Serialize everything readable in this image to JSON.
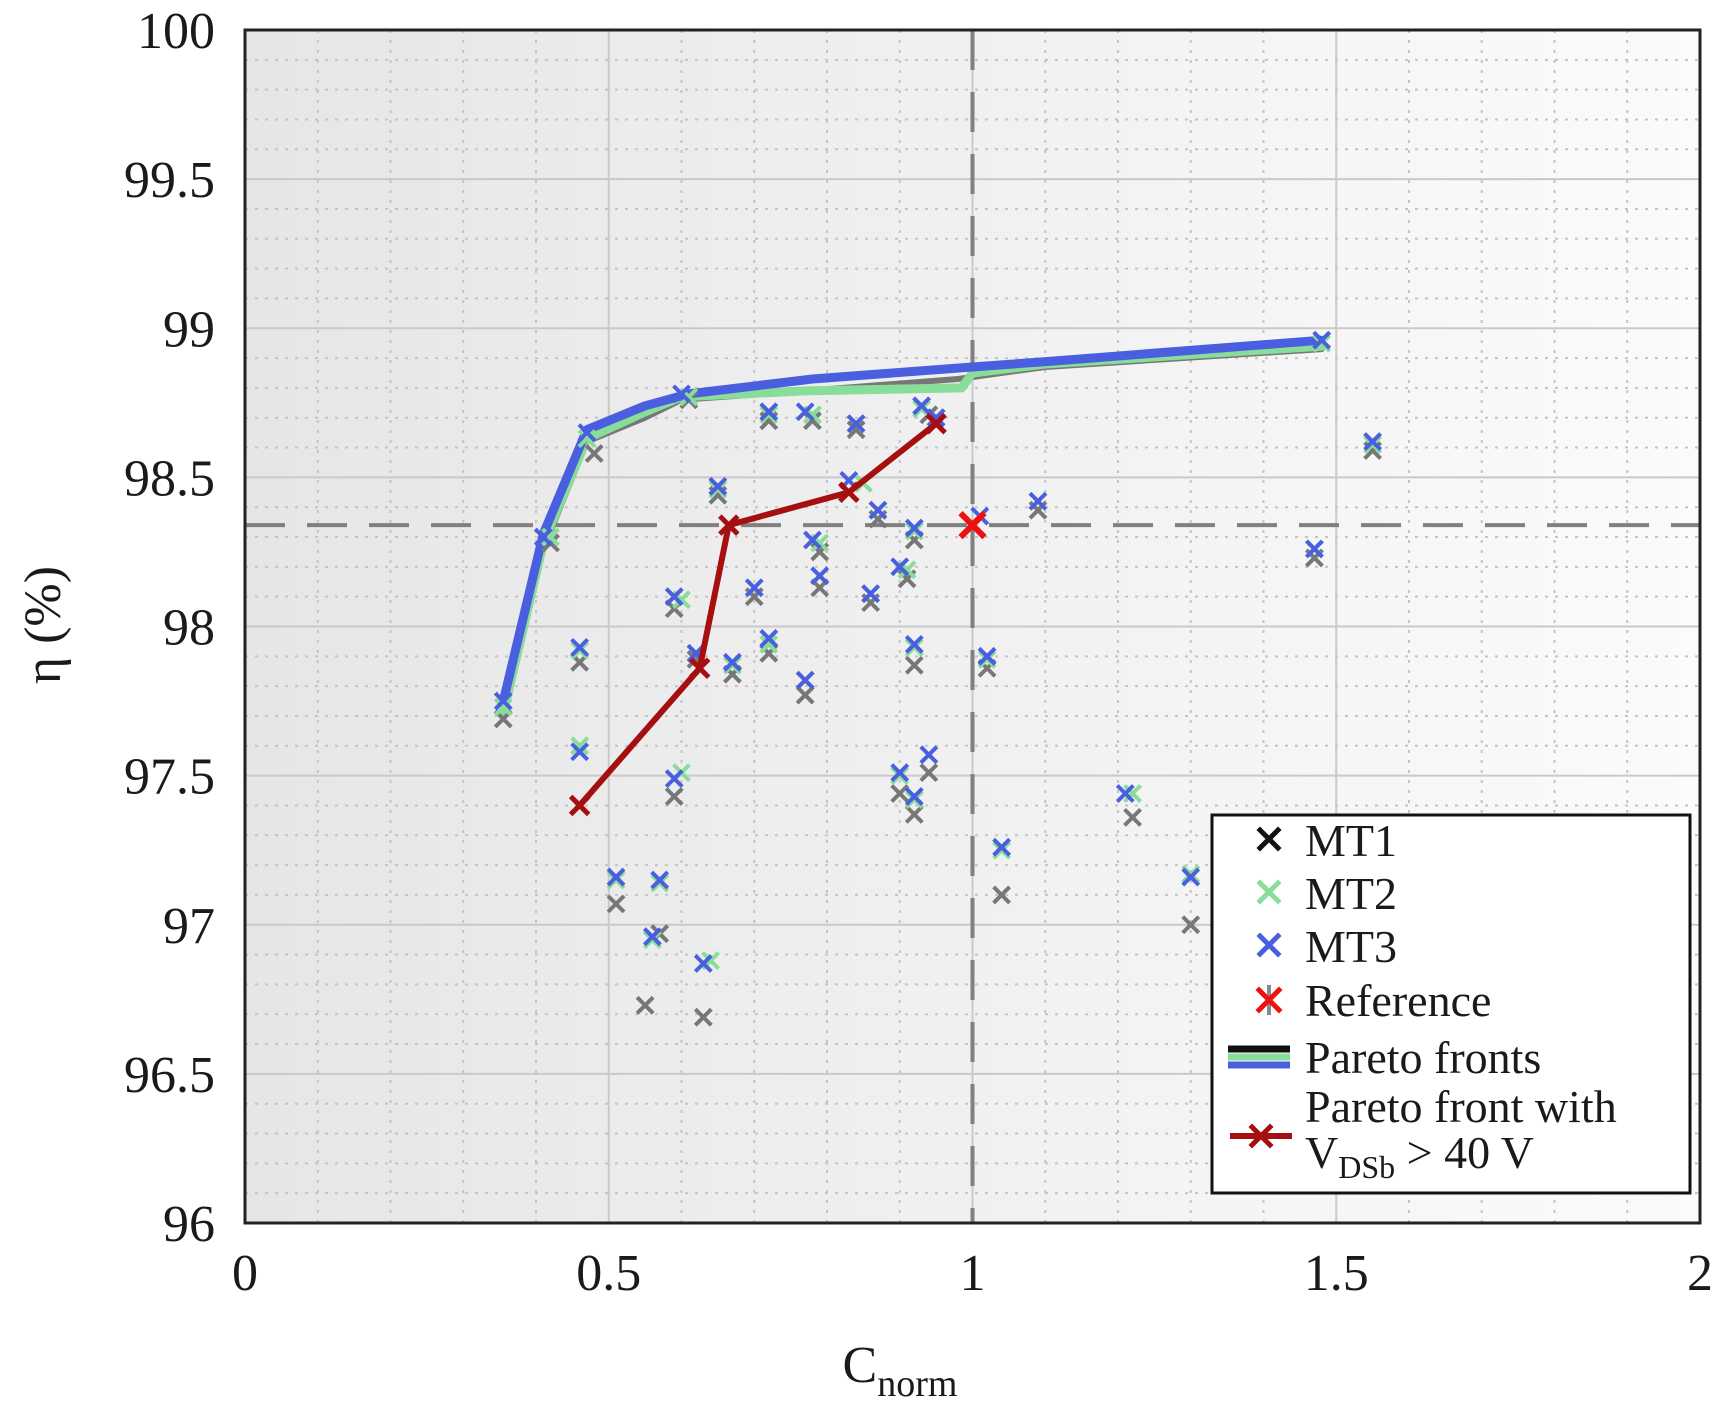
{
  "chart_data": {
    "type": "scatter",
    "title": "",
    "xlabel": {
      "main": "C",
      "sub": "norm"
    },
    "ylabel": "η (%)",
    "xlim": [
      0,
      2
    ],
    "ylim": [
      96,
      100
    ],
    "xticks": [
      0,
      0.5,
      1,
      1.5,
      2
    ],
    "yticks": [
      96,
      96.5,
      97,
      97.5,
      98,
      98.5,
      99,
      99.5,
      100
    ],
    "xtick_labels": [
      "0",
      "0.5",
      "1",
      "1.5",
      "2"
    ],
    "ytick_labels": [
      "96",
      "96.5",
      "97",
      "97.5",
      "98",
      "98.5",
      "99",
      "99.5",
      "100"
    ],
    "grid": true,
    "minor_grid": true,
    "reference_lines": {
      "x": 1.0,
      "y": 98.34
    },
    "colors": {
      "MT1": "#777777",
      "MT2": "#88dd99",
      "MT3": "#4a5fe0",
      "Reference": "#ee1111",
      "constrained_front": "#a50f0f",
      "pareto_legend_black": "#111111"
    },
    "series": [
      {
        "name": "MT1",
        "kind": "scatter",
        "points": [
          [
            0.355,
            97.69
          ],
          [
            0.42,
            98.28
          ],
          [
            0.48,
            98.58
          ],
          [
            0.46,
            97.88
          ],
          [
            0.51,
            97.07
          ],
          [
            0.55,
            96.73
          ],
          [
            0.57,
            96.97
          ],
          [
            0.59,
            97.43
          ],
          [
            0.59,
            98.06
          ],
          [
            0.61,
            98.76
          ],
          [
            0.62,
            97.89
          ],
          [
            0.63,
            96.69
          ],
          [
            0.65,
            98.44
          ],
          [
            0.67,
            97.84
          ],
          [
            0.7,
            98.1
          ],
          [
            0.72,
            98.69
          ],
          [
            0.72,
            97.91
          ],
          [
            0.77,
            97.77
          ],
          [
            0.78,
            98.69
          ],
          [
            0.79,
            98.25
          ],
          [
            0.79,
            98.13
          ],
          [
            0.84,
            98.66
          ],
          [
            0.86,
            98.08
          ],
          [
            0.87,
            98.36
          ],
          [
            0.9,
            97.44
          ],
          [
            0.91,
            98.16
          ],
          [
            0.92,
            97.37
          ],
          [
            0.92,
            97.87
          ],
          [
            0.92,
            98.29
          ],
          [
            0.94,
            97.51
          ],
          [
            0.94,
            98.71
          ],
          [
            0.95,
            98.68
          ],
          [
            1.0,
            98.34
          ],
          [
            1.02,
            97.86
          ],
          [
            1.04,
            97.1
          ],
          [
            1.09,
            98.39
          ],
          [
            1.22,
            97.36
          ],
          [
            1.3,
            97.0
          ],
          [
            1.47,
            98.23
          ],
          [
            1.55,
            98.59
          ]
        ]
      },
      {
        "name": "MT2",
        "kind": "scatter",
        "points": [
          [
            0.355,
            97.73
          ],
          [
            0.42,
            98.3
          ],
          [
            0.47,
            98.63
          ],
          [
            0.46,
            97.6
          ],
          [
            0.46,
            97.92
          ],
          [
            0.51,
            97.15
          ],
          [
            0.56,
            96.95
          ],
          [
            0.57,
            97.14
          ],
          [
            0.6,
            97.51
          ],
          [
            0.6,
            98.09
          ],
          [
            0.61,
            98.77
          ],
          [
            0.62,
            97.91
          ],
          [
            0.64,
            96.88
          ],
          [
            0.65,
            98.46
          ],
          [
            0.67,
            97.87
          ],
          [
            0.7,
            98.13
          ],
          [
            0.72,
            98.71
          ],
          [
            0.72,
            97.94
          ],
          [
            0.77,
            97.82
          ],
          [
            0.78,
            98.71
          ],
          [
            0.79,
            98.28
          ],
          [
            0.79,
            98.17
          ],
          [
            0.84,
            98.68
          ],
          [
            0.85,
            98.48
          ],
          [
            0.86,
            98.11
          ],
          [
            0.87,
            98.39
          ],
          [
            0.9,
            97.5
          ],
          [
            0.91,
            98.19
          ],
          [
            0.92,
            97.42
          ],
          [
            0.92,
            97.93
          ],
          [
            0.92,
            98.32
          ],
          [
            0.94,
            97.57
          ],
          [
            0.93,
            98.73
          ],
          [
            0.95,
            98.7
          ],
          [
            1.02,
            97.89
          ],
          [
            1.04,
            97.25
          ],
          [
            1.09,
            98.42
          ],
          [
            1.22,
            97.44
          ],
          [
            1.3,
            97.17
          ],
          [
            1.47,
            98.26
          ],
          [
            1.48,
            98.95
          ],
          [
            1.55,
            98.61
          ]
        ]
      },
      {
        "name": "MT3",
        "kind": "scatter",
        "points": [
          [
            0.355,
            97.75
          ],
          [
            0.41,
            98.3
          ],
          [
            0.47,
            98.65
          ],
          [
            0.46,
            97.58
          ],
          [
            0.46,
            97.93
          ],
          [
            0.51,
            97.16
          ],
          [
            0.56,
            96.96
          ],
          [
            0.57,
            97.15
          ],
          [
            0.59,
            97.49
          ],
          [
            0.59,
            98.1
          ],
          [
            0.6,
            98.78
          ],
          [
            0.62,
            97.91
          ],
          [
            0.63,
            96.87
          ],
          [
            0.65,
            98.47
          ],
          [
            0.67,
            97.88
          ],
          [
            0.7,
            98.13
          ],
          [
            0.72,
            98.72
          ],
          [
            0.72,
            97.96
          ],
          [
            0.77,
            97.82
          ],
          [
            0.77,
            98.72
          ],
          [
            0.78,
            98.29
          ],
          [
            0.79,
            98.17
          ],
          [
            0.84,
            98.68
          ],
          [
            0.83,
            98.49
          ],
          [
            0.86,
            98.11
          ],
          [
            0.87,
            98.39
          ],
          [
            0.9,
            97.51
          ],
          [
            0.9,
            98.2
          ],
          [
            0.92,
            97.43
          ],
          [
            0.92,
            97.94
          ],
          [
            0.92,
            98.33
          ],
          [
            0.94,
            97.57
          ],
          [
            0.93,
            98.74
          ],
          [
            0.95,
            98.7
          ],
          [
            1.01,
            98.37
          ],
          [
            1.02,
            97.9
          ],
          [
            1.04,
            97.26
          ],
          [
            1.09,
            98.42
          ],
          [
            1.21,
            97.44
          ],
          [
            1.3,
            97.16
          ],
          [
            1.47,
            98.26
          ],
          [
            1.48,
            98.96
          ],
          [
            1.55,
            98.62
          ]
        ]
      },
      {
        "name": "Reference",
        "kind": "scatter",
        "points": [
          [
            1.0,
            98.34
          ]
        ]
      },
      {
        "name": "Pareto fronts",
        "kind": "lines",
        "lines": [
          {
            "color": "#777777",
            "points": [
              [
                0.355,
                97.69
              ],
              [
                0.41,
                98.26
              ],
              [
                0.47,
                98.62
              ],
              [
                0.55,
                98.7
              ],
              [
                0.6,
                98.76
              ],
              [
                0.77,
                98.79
              ],
              [
                0.98,
                98.83
              ],
              [
                1.1,
                98.87
              ],
              [
                1.48,
                98.93
              ]
            ]
          },
          {
            "color": "#88dd99",
            "points": [
              [
                0.355,
                97.71
              ],
              [
                0.41,
                98.28
              ],
              [
                0.47,
                98.63
              ],
              [
                0.55,
                98.72
              ],
              [
                0.6,
                98.77
              ],
              [
                0.77,
                98.79
              ],
              [
                0.985,
                98.8
              ],
              [
                1.0,
                98.85
              ],
              [
                1.1,
                98.88
              ],
              [
                1.48,
                98.94
              ]
            ]
          },
          {
            "color": "#4a5fe0",
            "points": [
              [
                0.355,
                97.75
              ],
              [
                0.41,
                98.31
              ],
              [
                0.47,
                98.66
              ],
              [
                0.55,
                98.74
              ],
              [
                0.61,
                98.78
              ],
              [
                0.78,
                98.83
              ],
              [
                1.0,
                98.87
              ],
              [
                1.11,
                98.89
              ],
              [
                1.48,
                98.96
              ]
            ]
          }
        ]
      },
      {
        "name": "Pareto front with V_DSb > 40 V",
        "kind": "line",
        "points": [
          [
            0.46,
            97.4
          ],
          [
            0.625,
            97.86
          ],
          [
            0.665,
            98.34
          ],
          [
            0.83,
            98.45
          ],
          [
            0.95,
            98.68
          ]
        ]
      }
    ],
    "legend": {
      "placement": "bottom-right",
      "entries": [
        {
          "key": "MT1",
          "label": "MT1"
        },
        {
          "key": "MT2",
          "label": "MT2"
        },
        {
          "key": "MT3",
          "label": "MT3"
        },
        {
          "key": "Reference",
          "label": "Reference"
        },
        {
          "key": "Pareto fronts",
          "label": "Pareto fronts"
        },
        {
          "key": "constrained",
          "label_line1": "Pareto front with",
          "label_line2_main": "V",
          "label_line2_sub": "DSb",
          "label_line2_rest": " > 40 V"
        }
      ]
    }
  }
}
